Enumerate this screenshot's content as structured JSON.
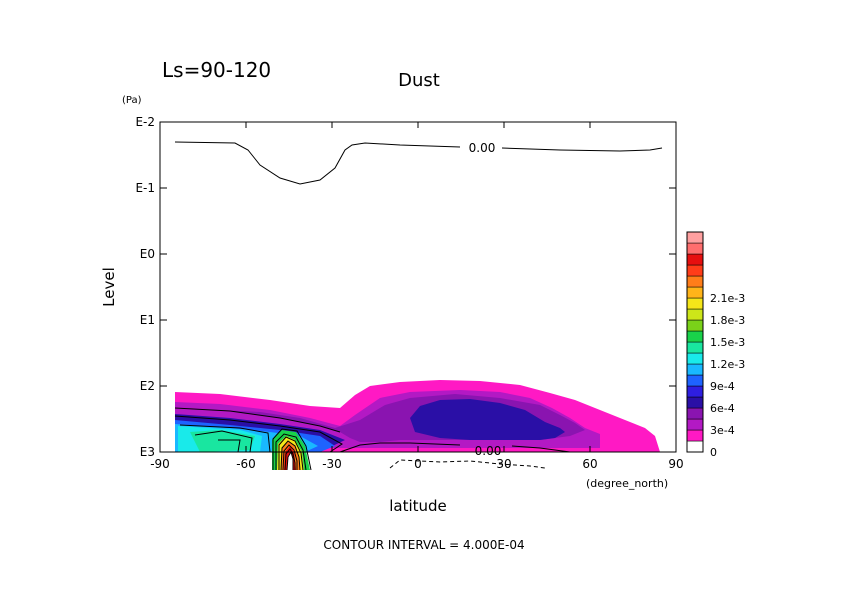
{
  "chart_data": {
    "type": "heatmap",
    "title": "Dust",
    "subtitle": "Ls=90-120",
    "xlabel": "latitude",
    "xunit": "(degree_north)",
    "ylabel": "Level",
    "yunit": "(Pa)",
    "x_ticks": [
      "-90",
      "-60",
      "-30",
      "0",
      "30",
      "60",
      "90"
    ],
    "y_ticks": [
      "E-2",
      "E-1",
      "E0",
      "E1",
      "E2",
      "E3"
    ],
    "xlim": [
      -90,
      90
    ],
    "ylim": [
      0.01,
      1000
    ],
    "yscale": "log",
    "footer": "CONTOUR INTERVAL = 4.000E-04",
    "contour_labels": [
      "0.00",
      "0.00"
    ],
    "colorbar": {
      "labels": [
        "0",
        "3e-4",
        "6e-4",
        "9e-4",
        "1.2e-3",
        "1.5e-3",
        "1.8e-3",
        "2.1e-3"
      ],
      "colors": [
        "#ffffff",
        "#ff19c4",
        "#b319c4",
        "#8a14b0",
        "#2a0fa6",
        "#2e1ee0",
        "#1e63ff",
        "#19b8ff",
        "#19eaea",
        "#19e6a0",
        "#19d24a",
        "#7ad219",
        "#cde619",
        "#f5e619",
        "#ffb419",
        "#ff7d19",
        "#ff3c19",
        "#e60f0f",
        "#ff6e6e",
        "#ffa0a0"
      ]
    }
  }
}
